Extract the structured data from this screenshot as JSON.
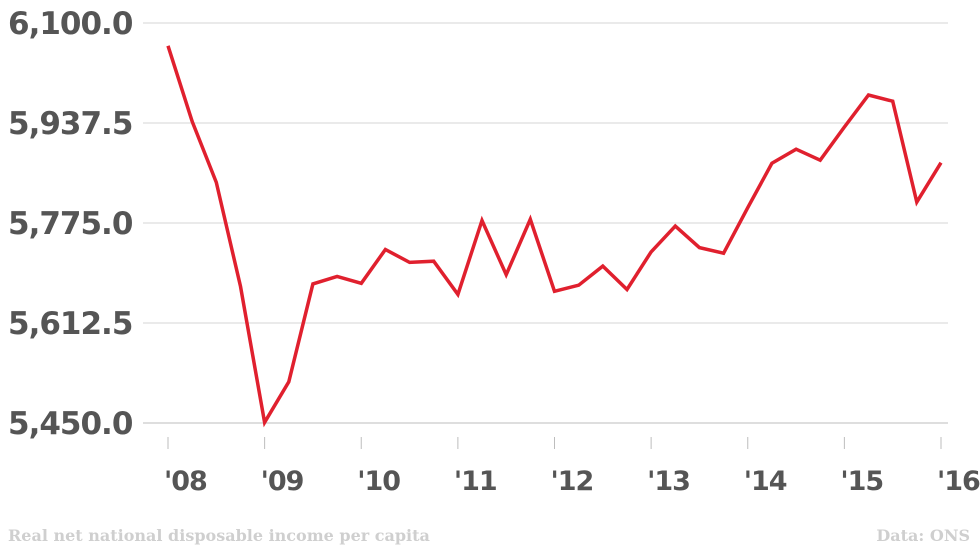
{
  "chart_data": {
    "type": "line",
    "title": "",
    "xlabel": "",
    "ylabel": "",
    "ylim": [
      5450.0,
      6100.0
    ],
    "y_ticks": [
      "6,100.0",
      "5,937.5",
      "5,775.0",
      "5,612.5",
      "5,450.0"
    ],
    "x_tick_labels": [
      "'08",
      "'09",
      "'10",
      "'11",
      "'12",
      "'13",
      "'14",
      "'15",
      "'16"
    ],
    "x_tick_values": [
      2008,
      2009,
      2010,
      2011,
      2012,
      2013,
      2014,
      2015,
      2016
    ],
    "grid": true,
    "color": "#e0202e",
    "series": [
      {
        "x": [
          2008.0,
          2008.25,
          2008.5,
          2008.75,
          2009.0,
          2009.25,
          2009.5,
          2009.75,
          2010.0,
          2010.25,
          2010.5,
          2010.75,
          2011.0,
          2011.25,
          2011.5,
          2011.75,
          2012.0,
          2012.25,
          2012.5,
          2012.75,
          2013.0,
          2013.25,
          2013.5,
          2013.75,
          2014.0,
          2014.25,
          2014.5,
          2014.75,
          2015.0,
          2015.25,
          2015.5,
          2015.75,
          2016.0
        ],
        "values": [
          6063,
          5940,
          5841,
          5672,
          5451,
          5517,
          5676,
          5688,
          5677,
          5732,
          5711,
          5713,
          5659,
          5779,
          5691,
          5781,
          5664,
          5674,
          5705,
          5667,
          5728,
          5770,
          5735,
          5726,
          5800,
          5872,
          5895,
          5877,
          5931,
          5983,
          5973,
          5809,
          5873
        ]
      }
    ]
  },
  "footer": {
    "title": "Real net national disposable income per capita",
    "source": "Data: ONS"
  }
}
